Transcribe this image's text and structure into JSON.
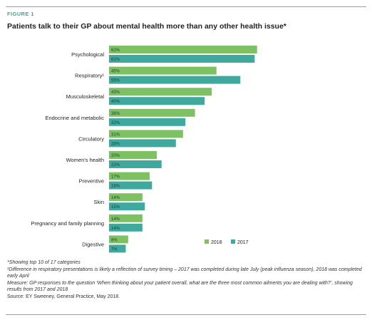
{
  "figure_label": "FIGURE 1",
  "title": "Patients talk to their GP about mental health more than any other health issue*",
  "notes": {
    "top10": "*Showing top 10 of 17 categories",
    "respiratory": "¹Difference in respiratory presentations is likely a reflection of survey timing – 2017 was completed during late July (peak influenza season), 2018 was completed early April",
    "measure": "Measure: GP responses to the question ‘When thinking about your patient overall, what are the three most common ailments you are dealing with?’, showing results from 2017 and 2018",
    "source": "Source: EY Sweeney, General Practice, May 2018."
  },
  "chart_data": {
    "type": "bar",
    "orientation": "horizontal",
    "title": "Patients talk to their GP about mental health more than any other health issue*",
    "categories": [
      "Psychological",
      "Respiratory¹",
      "Musculoskeletal",
      "Endocrine and metabolic",
      "Circulatory",
      "Women's health",
      "Preventive",
      "Skin",
      "Pregnancy and family planning",
      "Digestive"
    ],
    "series": [
      {
        "name": "2018",
        "color": "#7dc163",
        "values": [
          62,
          45,
          43,
          36,
          31,
          20,
          17,
          14,
          14,
          8
        ],
        "labels": [
          "62%",
          "45%",
          "43%",
          "36%",
          "31%",
          "20%",
          "17%",
          "14%",
          "14%",
          "8%"
        ]
      },
      {
        "name": "2017",
        "color": "#3fa99e",
        "values": [
          61,
          55,
          40,
          32,
          28,
          22,
          18,
          15,
          14,
          7
        ],
        "labels": [
          "61%",
          "55%",
          "40%",
          "32%",
          "28%",
          "22%",
          "18%",
          "15%",
          "14%",
          "7%"
        ]
      }
    ],
    "xlim": [
      0,
      100
    ],
    "grid": false,
    "legend": "bottom-right"
  }
}
